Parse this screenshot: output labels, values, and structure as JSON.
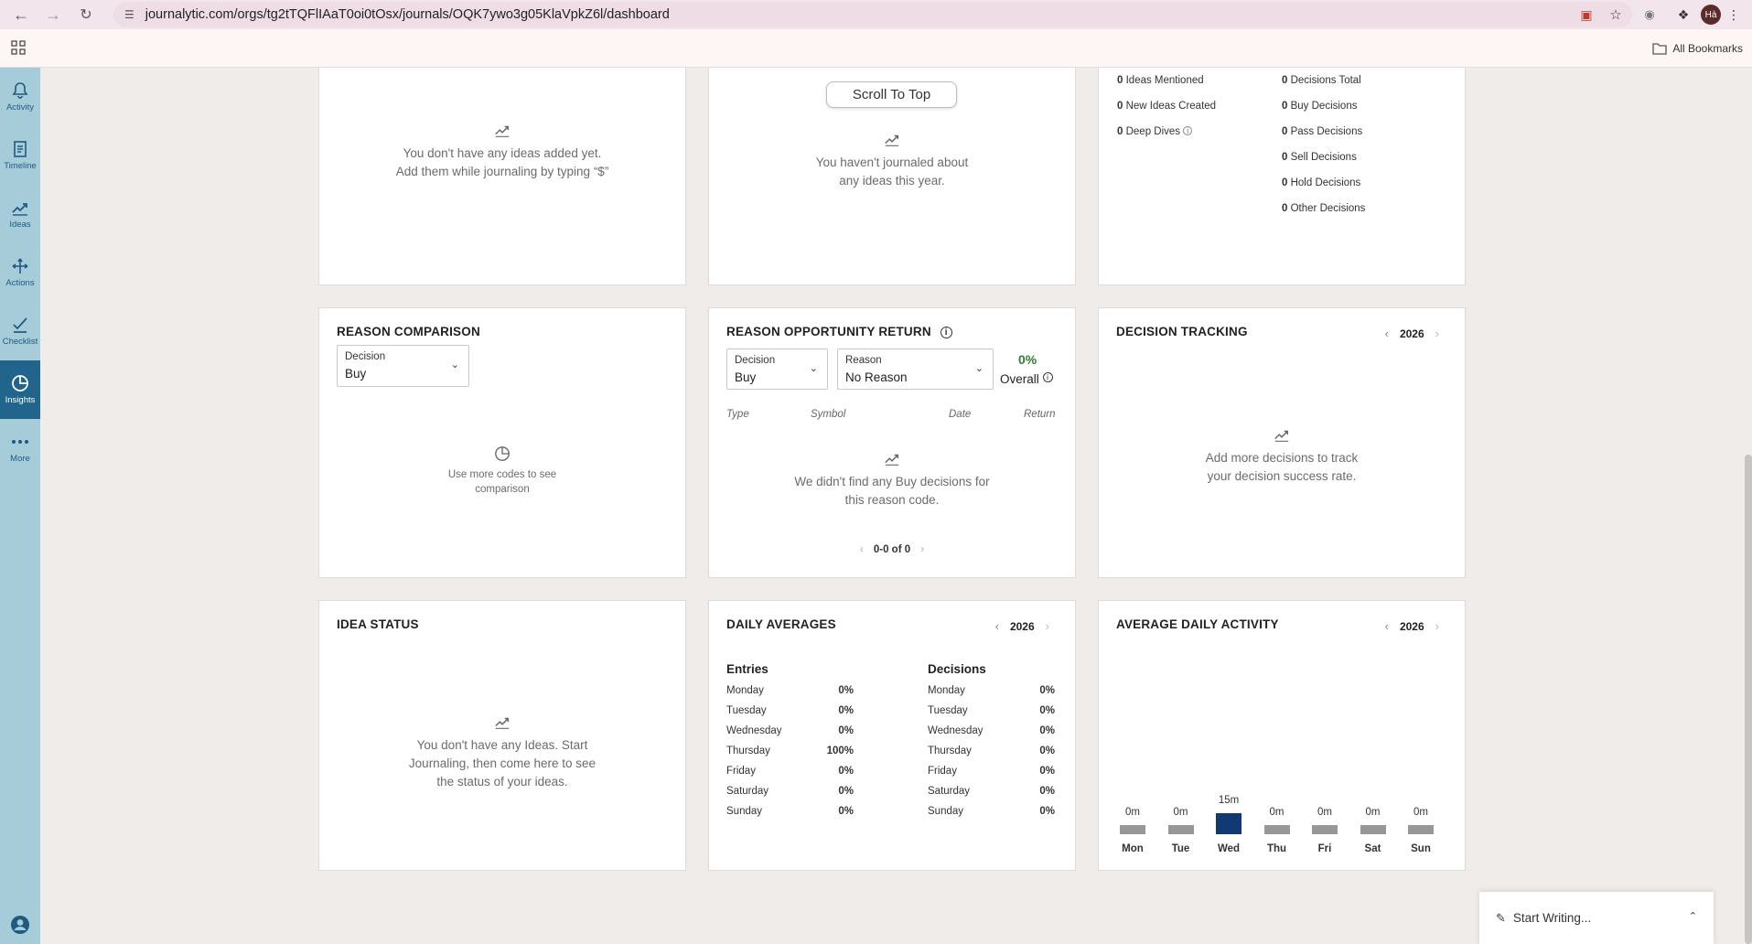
{
  "browser": {
    "url": "journalytic.com/orgs/tg2tTQFlIAaT0oi0tOsx/journals/OQK7ywo3g05KlaVpkZ6l/dashboard",
    "avatar_initials": "Hà",
    "all_bookmarks": "All Bookmarks"
  },
  "nav": {
    "items": [
      {
        "label": "Activity",
        "icon": "bell-icon"
      },
      {
        "label": "Timeline",
        "icon": "document-icon"
      },
      {
        "label": "Ideas",
        "icon": "trend-icon"
      },
      {
        "label": "Actions",
        "icon": "arrows-icon"
      },
      {
        "label": "Checklist",
        "icon": "check-icon"
      },
      {
        "label": "Insights",
        "icon": "pie-icon"
      },
      {
        "label": "More",
        "icon": "dots-icon"
      }
    ],
    "active": "Insights"
  },
  "cards": {
    "ideas_top": {
      "empty_line1": "You don't have any ideas added yet.",
      "empty_line2": "Add them while journaling by typing “$”"
    },
    "ideas_year": {
      "scroll_top": "Scroll To Top",
      "empty_line1": "You haven't journaled about",
      "empty_line2": "any ideas this year."
    },
    "stats": {
      "left": [
        {
          "n": "0",
          "label": "Ideas Mentioned"
        },
        {
          "n": "0",
          "label": "New Ideas Created"
        },
        {
          "n": "0",
          "label": "Deep Dives"
        }
      ],
      "right": [
        {
          "n": "0",
          "label": "Decisions Total"
        },
        {
          "n": "0",
          "label": "Buy Decisions"
        },
        {
          "n": "0",
          "label": "Pass Decisions"
        },
        {
          "n": "0",
          "label": "Sell Decisions"
        },
        {
          "n": "0",
          "label": "Hold Decisions"
        },
        {
          "n": "0",
          "label": "Other Decisions"
        }
      ]
    },
    "reason_comparison": {
      "title": "REASON COMPARISON",
      "select_label": "Decision",
      "select_value": "Buy",
      "empty_line1": "Use more codes to see",
      "empty_line2": "comparison"
    },
    "reason_return": {
      "title": "REASON OPPORTUNITY RETURN",
      "decision_label": "Decision",
      "decision_value": "Buy",
      "reason_label": "Reason",
      "reason_value": "No Reason",
      "overall_pct": "0%",
      "overall_label": "Overall",
      "columns": [
        "Type",
        "Symbol",
        "Date",
        "Return"
      ],
      "empty_line1": "We didn't find any Buy decisions for",
      "empty_line2": "this reason code.",
      "pagination": "0-0 of 0"
    },
    "decision_tracking": {
      "title": "DECISION TRACKING",
      "year": "2026",
      "empty_line1": "Add more decisions to track",
      "empty_line2": "your decision success rate."
    },
    "idea_status": {
      "title": "IDEA STATUS",
      "empty_line1": "You don't have any Ideas. Start",
      "empty_line2": "Journaling, then come here to see",
      "empty_line3": "the status of your ideas."
    },
    "daily_averages": {
      "title": "DAILY AVERAGES",
      "year": "2026",
      "entries_title": "Entries",
      "decisions_title": "Decisions",
      "entries": [
        {
          "day": "Monday",
          "pct": "0%"
        },
        {
          "day": "Tuesday",
          "pct": "0%"
        },
        {
          "day": "Wednesday",
          "pct": "0%"
        },
        {
          "day": "Thursday",
          "pct": "100%"
        },
        {
          "day": "Friday",
          "pct": "0%"
        },
        {
          "day": "Saturday",
          "pct": "0%"
        },
        {
          "day": "Sunday",
          "pct": "0%"
        }
      ],
      "decisions": [
        {
          "day": "Monday",
          "pct": "0%"
        },
        {
          "day": "Tuesday",
          "pct": "0%"
        },
        {
          "day": "Wednesday",
          "pct": "0%"
        },
        {
          "day": "Thursday",
          "pct": "0%"
        },
        {
          "day": "Friday",
          "pct": "0%"
        },
        {
          "day": "Saturday",
          "pct": "0%"
        },
        {
          "day": "Sunday",
          "pct": "0%"
        }
      ]
    },
    "avg_daily_activity": {
      "title": "AVERAGE DAILY ACTIVITY",
      "year": "2026"
    }
  },
  "chart_data": {
    "type": "bar",
    "categories": [
      "Mon",
      "Tue",
      "Wed",
      "Thu",
      "Fri",
      "Sat",
      "Sun"
    ],
    "values": [
      0,
      0,
      15,
      0,
      0,
      0,
      0
    ],
    "value_labels": [
      "0m",
      "0m",
      "15m",
      "0m",
      "0m",
      "0m",
      "0m"
    ],
    "unit": "minutes",
    "highlight_color": "#0f3a73",
    "bar_color": "#97979a"
  },
  "start_writing": "Start Writing..."
}
